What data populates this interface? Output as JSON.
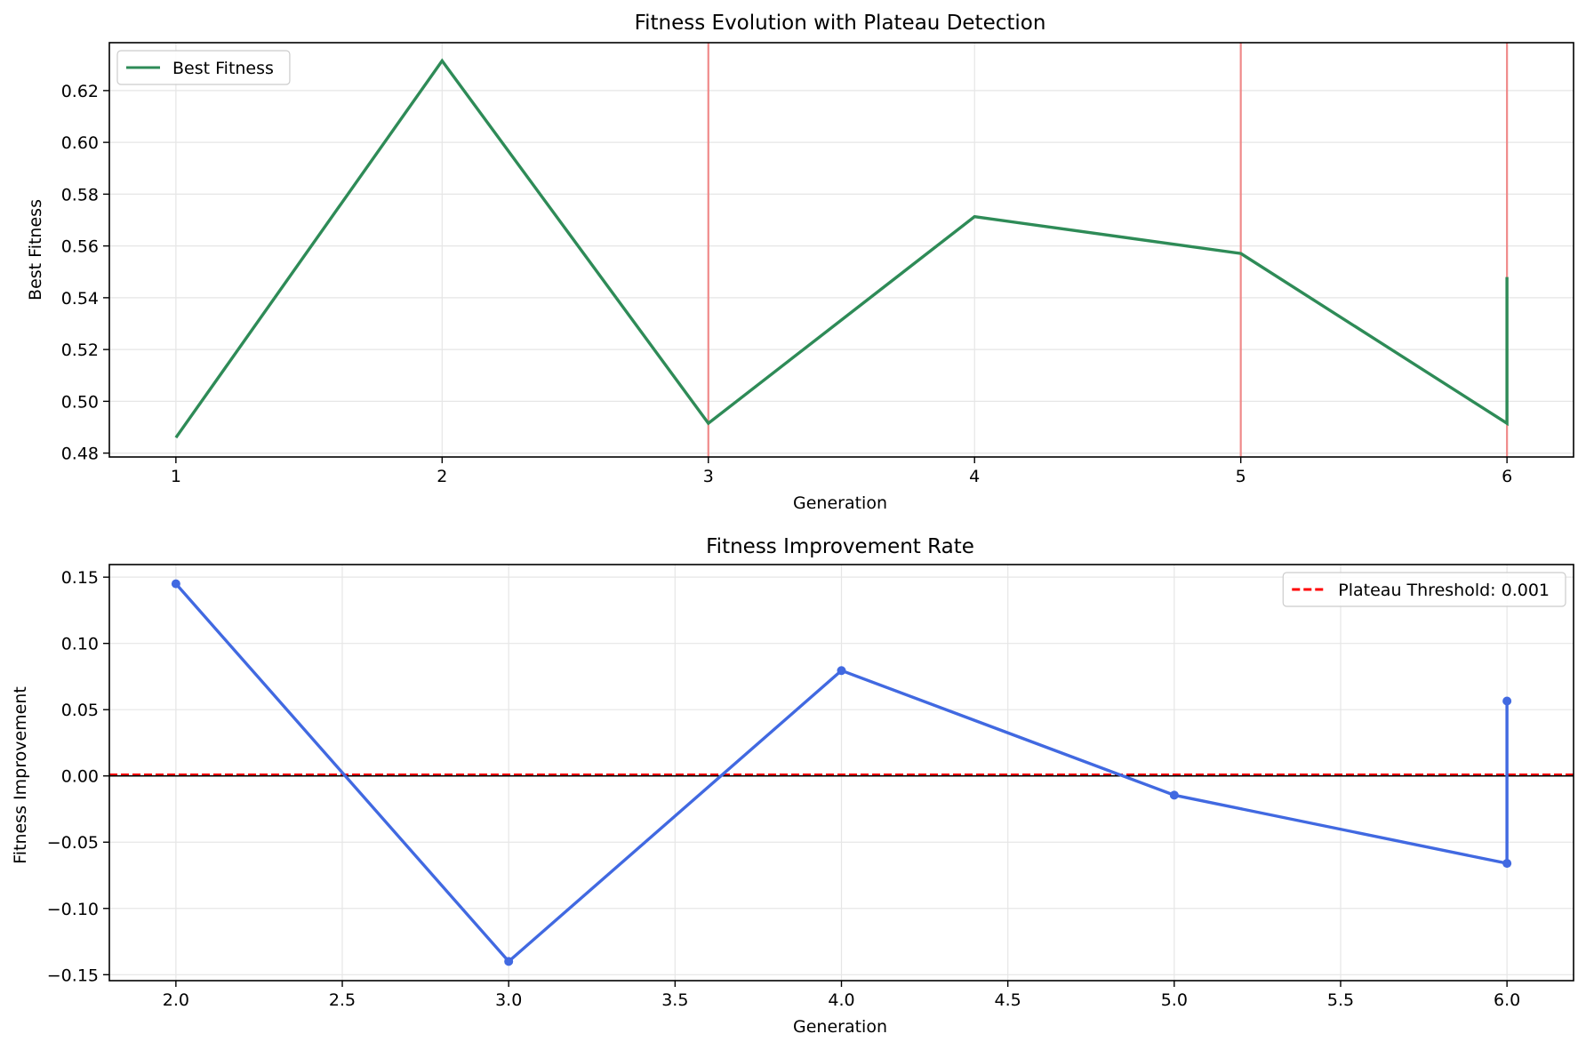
{
  "chart_data": [
    {
      "type": "line",
      "title": "Fitness Evolution with Plateau Detection",
      "xlabel": "Generation",
      "ylabel": "Best Fitness",
      "xlim": [
        0.75,
        6.25
      ],
      "ylim": [
        0.4785,
        0.6385
      ],
      "xticks": [
        1,
        2,
        3,
        4,
        5,
        6
      ],
      "xtick_labels": [
        "1",
        "2",
        "3",
        "4",
        "5",
        "6"
      ],
      "yticks": [
        0.48,
        0.5,
        0.52,
        0.54,
        0.56,
        0.58,
        0.6,
        0.62
      ],
      "ytick_labels": [
        "0.48",
        "0.50",
        "0.52",
        "0.54",
        "0.56",
        "0.58",
        "0.60",
        "0.62"
      ],
      "grid": true,
      "legend_position": "upper-left",
      "series": [
        {
          "name": "Best Fitness",
          "color": "#2e8b57",
          "x": [
            1,
            2,
            3,
            4,
            5,
            6,
            6
          ],
          "y": [
            0.486,
            0.6315,
            0.4915,
            0.5713,
            0.5571,
            0.4915,
            0.548
          ]
        }
      ],
      "vlines": {
        "color": "#f08080",
        "x": [
          3,
          5,
          6
        ]
      }
    },
    {
      "type": "line",
      "title": "Fitness Improvement Rate",
      "xlabel": "Generation",
      "ylabel": "Fitness Improvement",
      "xlim": [
        1.8,
        6.2
      ],
      "ylim": [
        -0.1545,
        0.1595
      ],
      "xticks": [
        2.0,
        2.5,
        3.0,
        3.5,
        4.0,
        4.5,
        5.0,
        5.5,
        6.0
      ],
      "xtick_labels": [
        "2.0",
        "2.5",
        "3.0",
        "3.5",
        "4.0",
        "4.5",
        "5.0",
        "5.5",
        "6.0"
      ],
      "yticks": [
        -0.15,
        -0.1,
        -0.05,
        0.0,
        0.05,
        0.1,
        0.15
      ],
      "ytick_labels": [
        "−0.15",
        "−0.10",
        "−0.05",
        "0.00",
        "0.05",
        "0.10",
        "0.15"
      ],
      "grid": true,
      "legend_position": "upper-right",
      "series": [
        {
          "color": "#4169e1",
          "markers": true,
          "x": [
            2,
            3,
            4,
            5,
            6,
            6
          ],
          "y": [
            0.145,
            -0.14,
            0.0795,
            -0.0145,
            -0.066,
            0.0565
          ]
        }
      ],
      "hlines": [
        {
          "name": "Plateau Threshold: 0.001",
          "y": 0.001,
          "color": "#ff0000",
          "style": "dashed"
        },
        {
          "y": 0.0,
          "color": "#000000",
          "style": "solid"
        }
      ]
    }
  ]
}
